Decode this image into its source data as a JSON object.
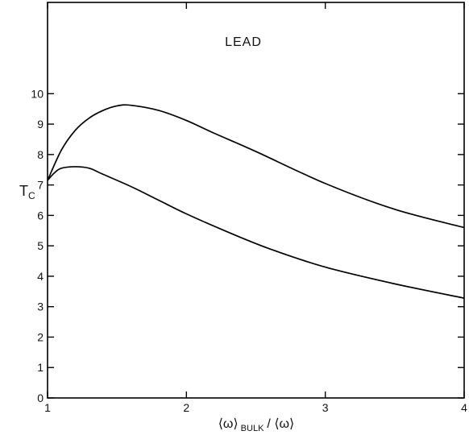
{
  "chart_data": {
    "type": "line",
    "title": "LEAD",
    "xlabel": "⟨ω⟩ BULK / ⟨ω⟩",
    "xlabel_main_left": "⟨ω⟩",
    "xlabel_sub": "BULK",
    "xlabel_main_right": "/ ⟨ω⟩",
    "ylabel": "T",
    "ylabel_sub": "C",
    "xlim": [
      1,
      4
    ],
    "ylim": [
      0,
      13
    ],
    "x_ticks": [
      1,
      2,
      3,
      4
    ],
    "y_ticks": [
      0,
      1,
      2,
      3,
      4,
      5,
      6,
      7,
      8,
      9,
      10
    ],
    "x_tick_labels": [
      "1",
      "2",
      "3",
      "4"
    ],
    "y_tick_labels": [
      "0",
      "1",
      "2",
      "3",
      "4",
      "5",
      "6",
      "7",
      "8",
      "9",
      "10"
    ],
    "grid": false,
    "series": [
      {
        "x": [
          1.0,
          1.1,
          1.2,
          1.3,
          1.4,
          1.5,
          1.6,
          1.8,
          2.0,
          2.2,
          2.5,
          3.0,
          3.5,
          4.0
        ],
        "y": [
          7.15,
          8.15,
          8.8,
          9.2,
          9.45,
          9.6,
          9.62,
          9.45,
          9.12,
          8.7,
          8.1,
          7.05,
          6.2,
          5.6
        ]
      },
      {
        "x": [
          1.0,
          1.05,
          1.1,
          1.2,
          1.3,
          1.4,
          1.6,
          1.8,
          2.0,
          2.3,
          2.6,
          3.0,
          3.5,
          4.0
        ],
        "y": [
          7.15,
          7.4,
          7.55,
          7.6,
          7.55,
          7.35,
          6.95,
          6.5,
          6.05,
          5.45,
          4.9,
          4.3,
          3.75,
          3.28
        ]
      }
    ]
  }
}
